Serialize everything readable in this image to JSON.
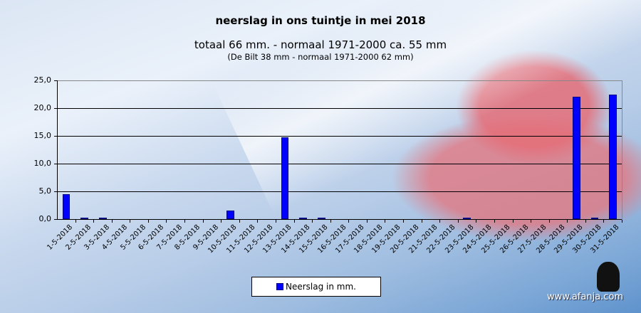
{
  "chart_data": {
    "type": "bar",
    "title": "neerslag in ons tuintje in mei 2018",
    "subtitle": "totaal 66 mm. - normaal 1971-2000  ca. 55 mm",
    "subtitle2": "(De Bilt 38 mm - normaal 1971-2000 62 mm)",
    "xlabel": "",
    "ylabel": "",
    "ylim": [
      0,
      25
    ],
    "yticks": [
      "0,0",
      "5,0",
      "10,0",
      "15,0",
      "20,0",
      "25,0"
    ],
    "grid": true,
    "legend_position": "bottom",
    "categories": [
      "1-5-2018",
      "2-5-2018",
      "3-5-2018",
      "4-5-2018",
      "5-5-2018",
      "6-5-2018",
      "7-5-2018",
      "8-5-2018",
      "9-5-2018",
      "10-5-2018",
      "11-5-2018",
      "12-5-2018",
      "13-5-2018",
      "14-5-2018",
      "15-5-2018",
      "16-5-2018",
      "17-5-2018",
      "18-5-2018",
      "19-5-2018",
      "20-5-2018",
      "21-5-2018",
      "22-5-2018",
      "23-5-2018",
      "24-5-2018",
      "25-5-2018",
      "26-5-2018",
      "27-5-2018",
      "28-5-2018",
      "29-5-2018",
      "30-5-2018",
      "31-5-2018"
    ],
    "series": [
      {
        "name": "Neerslag in mm.",
        "color": "#0000ff",
        "values": [
          4.5,
          0.3,
          0.1,
          0,
          0,
          0,
          0,
          0,
          0,
          1.5,
          0,
          0,
          14.7,
          0.1,
          0.1,
          0,
          0,
          0,
          0,
          0,
          0,
          0,
          0.1,
          0,
          0,
          0,
          0,
          0,
          22.0,
          0.1,
          22.4
        ]
      }
    ]
  },
  "legend": {
    "label": "Neerslag in mm."
  },
  "watermark": "www.afanja.com"
}
